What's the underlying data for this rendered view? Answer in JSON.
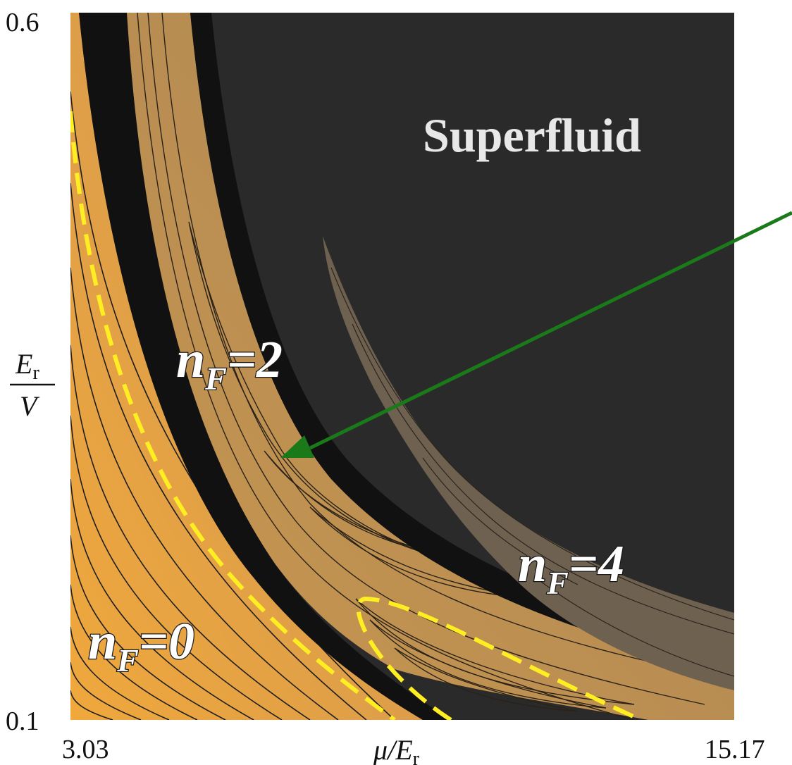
{
  "chart_data": {
    "type": "heatmap",
    "title": "",
    "xlabel": "μ/E",
    "xlabel_sub": "r",
    "ylabel_num": "E",
    "ylabel_num_sub": "r",
    "ylabel_den": "V",
    "xlim": [
      3.03,
      15.17
    ],
    "ylim": [
      0.1,
      0.6
    ],
    "x_ticks": [
      "3.03",
      "15.17"
    ],
    "y_ticks": [
      "0.6",
      "0.1"
    ],
    "regions": [
      {
        "label": "Superfluid",
        "kind": "region"
      },
      {
        "label": "n",
        "sub": "F",
        "value": "=0",
        "kind": "mott-lobe"
      },
      {
        "label": "n",
        "sub": "F",
        "value": "=2",
        "kind": "mott-lobe"
      },
      {
        "label": "n",
        "sub": "F",
        "value": "=4",
        "kind": "mott-lobe"
      }
    ],
    "annotations": [
      {
        "kind": "arrow",
        "color": "#1a7a1a",
        "points_to": "n_F=2 lobe tip"
      },
      {
        "kind": "dashed-boundary",
        "color": "#ffee22"
      }
    ],
    "colors": {
      "background": "#2a2a2a",
      "lobe0": "#e8a540",
      "lobe2": "#b98d55",
      "lobe4": "#6e6150",
      "dash": "#ffee22",
      "arrow": "#1a7a1a"
    }
  }
}
